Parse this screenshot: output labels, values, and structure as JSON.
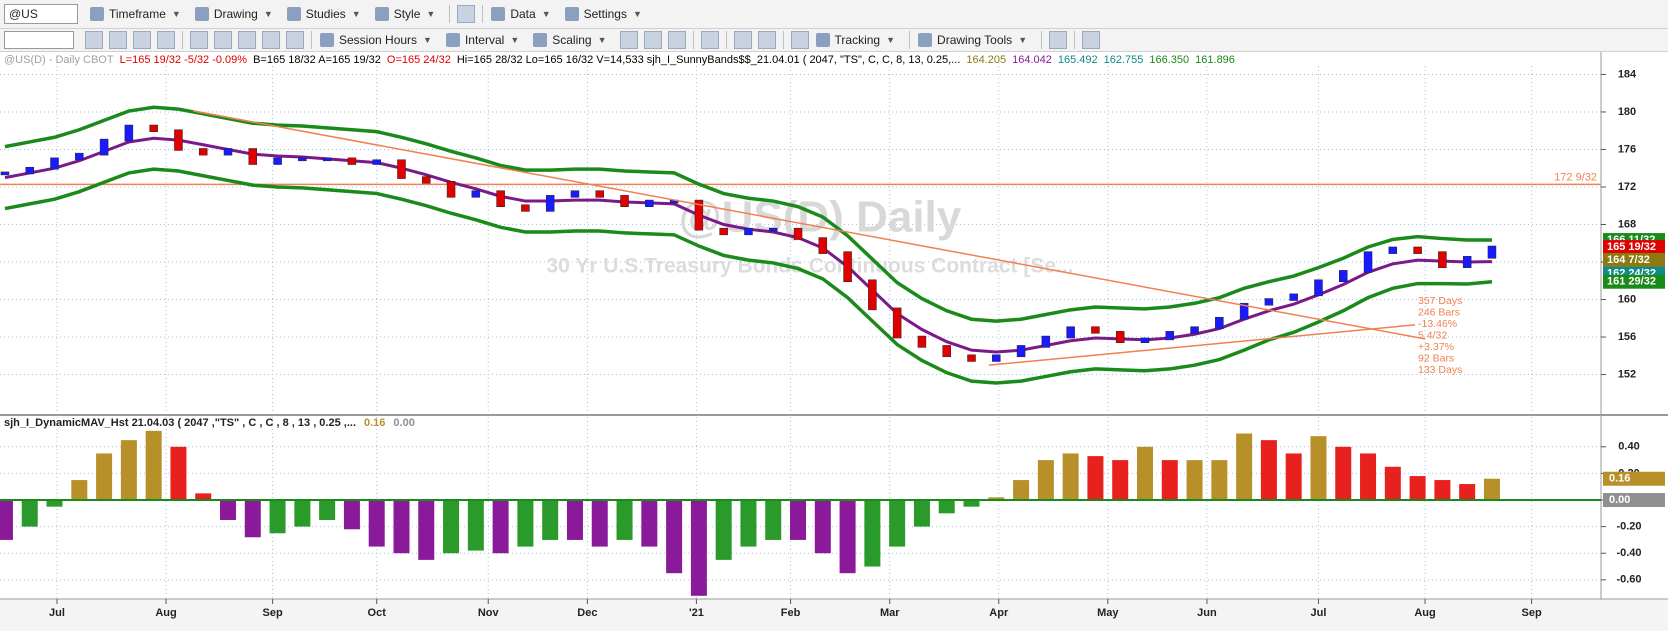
{
  "toolbar": {
    "symbol": "@US",
    "row1": [
      "Timeframe",
      "Drawing",
      "Studies",
      "Style",
      "Data",
      "Settings"
    ],
    "row2": [
      "Session Hours",
      "Interval",
      "Scaling",
      "Tracking",
      "Drawing Tools"
    ]
  },
  "chart_data": [
    {
      "type": "candlestick",
      "watermark_title": "@US(D) Daily",
      "watermark_subtitle": "30 Yr U.S.Treasury Bonds Continuous Contract [Se...",
      "header": [
        {
          "text": "@US(D) - Daily  CBOT",
          "color": "#a0a0a0"
        },
        {
          "text": "L=165 19/32  -5/32  -0.09%",
          "color": "#e00000"
        },
        {
          "text": "B=165 18/32  A=165 19/32",
          "color": "#000000"
        },
        {
          "text": "O=165 24/32",
          "color": "#e00000"
        },
        {
          "text": "Hi=165 28/32  Lo=165 16/32  V=14,533  sjh_I_SunnyBands$$_21.04.01 ( 2047, \"TS\", C, C,   8,  13,  0.25,...",
          "color": "#000000"
        },
        {
          "text": "164.205",
          "color": "#8a7a10"
        },
        {
          "text": "164.042",
          "color": "#8a1a9a"
        },
        {
          "text": "165.492",
          "color": "#108a8a"
        },
        {
          "text": "162.755",
          "color": "#108a8a"
        },
        {
          "text": "166.350",
          "color": "#1a8a1a"
        },
        {
          "text": "161.896",
          "color": "#1a8a1a"
        }
      ],
      "xlim": [
        -0.2,
        64.4
      ],
      "xticks": [
        {
          "value": 2.1,
          "label": "Jul"
        },
        {
          "value": 6.5,
          "label": "Aug"
        },
        {
          "value": 10.8,
          "label": "Sep"
        },
        {
          "value": 15.0,
          "label": "Oct"
        },
        {
          "value": 19.5,
          "label": "Nov"
        },
        {
          "value": 23.5,
          "label": "Dec"
        },
        {
          "value": 27.9,
          "label": "'21"
        },
        {
          "value": 31.7,
          "label": "Feb"
        },
        {
          "value": 35.7,
          "label": "Mar"
        },
        {
          "value": 40.1,
          "label": "Apr"
        },
        {
          "value": 44.5,
          "label": "May"
        },
        {
          "value": 48.5,
          "label": "Jun"
        },
        {
          "value": 53.0,
          "label": "Jul"
        },
        {
          "value": 57.3,
          "label": "Aug"
        },
        {
          "value": 61.6,
          "label": "Sep"
        }
      ],
      "ylim": [
        147.9,
        184.9
      ],
      "yticks": [
        152,
        156,
        160,
        164,
        168,
        172,
        176,
        180,
        184
      ],
      "grid": true,
      "up_color": "#1a1aff",
      "down_color": "#e00000",
      "series": [
        {
          "style": "candles",
          "color": "#1a1aff",
          "values": [
            173.5,
            174,
            175,
            175.5,
            177,
            178.5,
            178,
            176,
            175.5,
            176,
            174.5,
            175,
            175,
            175,
            174.5,
            174.8,
            173,
            172.5,
            171,
            171.5,
            170,
            169.5,
            171,
            171.5,
            171,
            170,
            170.5,
            170.5,
            167.5,
            167,
            167.5,
            167.5,
            166.5,
            165,
            162,
            159,
            156,
            155,
            154,
            153.5,
            154,
            155,
            156,
            157,
            156.5,
            155.5,
            155.8,
            156.5,
            157,
            158,
            159.5,
            160,
            160.5,
            162,
            163,
            165,
            165.5,
            165,
            163.5,
            164.5,
            165.6
          ]
        },
        {
          "style": "line",
          "color": "#7a1a8a",
          "width": 3,
          "values": [
            173,
            173.5,
            174,
            174.8,
            175.8,
            176.8,
            177.2,
            177,
            176.5,
            176,
            175.5,
            175.3,
            175.2,
            175,
            174.8,
            174.6,
            174,
            173.3,
            172.5,
            171.8,
            171,
            170.5,
            170.5,
            170.6,
            170.6,
            170.4,
            170.3,
            170.2,
            169,
            168,
            167.5,
            167.2,
            166.6,
            165.5,
            163.5,
            161,
            158.5,
            156.8,
            155.5,
            154.6,
            154.4,
            154.6,
            155.1,
            155.6,
            155.9,
            155.8,
            155.7,
            155.9,
            156.3,
            156.9,
            157.9,
            158.8,
            159.5,
            160.5,
            161.6,
            162.9,
            163.8,
            164.2,
            164.1,
            164.0,
            164.04
          ]
        },
        {
          "style": "line",
          "color": "#1a8a1a",
          "width": 3.5,
          "values": [
            176.3,
            176.8,
            177.3,
            178.1,
            179.1,
            180.1,
            180.5,
            180.3,
            179.8,
            179.3,
            178.8,
            178.6,
            178.5,
            178.3,
            178.1,
            177.9,
            177.3,
            176.6,
            175.8,
            175.1,
            174.3,
            173.8,
            173.8,
            173.9,
            173.9,
            173.7,
            173.6,
            173.5,
            172.3,
            171.3,
            170.8,
            170.5,
            169.9,
            168.8,
            166.8,
            164.3,
            161.8,
            160.1,
            158.8,
            157.9,
            157.7,
            157.9,
            158.4,
            158.9,
            159.2,
            159.1,
            159.0,
            159.2,
            159.6,
            160.2,
            161.2,
            161.9,
            162.5,
            163.4,
            164.4,
            165.6,
            166.4,
            166.7,
            166.5,
            166.35,
            166.35
          ]
        },
        {
          "style": "line",
          "color": "#1a8a1a",
          "width": 3.5,
          "values": [
            169.7,
            170.2,
            170.7,
            171.5,
            172.5,
            173.5,
            173.9,
            173.7,
            173.2,
            172.7,
            172.2,
            172.0,
            171.9,
            171.7,
            171.5,
            171.3,
            170.7,
            170.0,
            169.2,
            168.5,
            167.7,
            167.2,
            167.2,
            167.3,
            167.3,
            167.1,
            167.0,
            166.9,
            165.7,
            164.7,
            164.2,
            163.9,
            163.3,
            162.2,
            160.2,
            157.7,
            155.2,
            153.5,
            152.2,
            151.3,
            151.1,
            151.3,
            151.8,
            152.3,
            152.6,
            152.5,
            152.4,
            152.6,
            153.0,
            153.6,
            154.6,
            155.7,
            156.5,
            157.6,
            158.8,
            160.2,
            161.2,
            161.7,
            161.7,
            161.65,
            161.9
          ]
        }
      ],
      "hline": {
        "value": 172.28,
        "label": "172 9/32",
        "color": "#f08050"
      },
      "trendlines": [
        {
          "x": [
            7.6,
            57.3
          ],
          "y": [
            180.1,
            155.8
          ]
        },
        {
          "x": [
            39.7,
            56.9
          ],
          "y": [
            153,
            157.3
          ]
        }
      ],
      "annotations": [
        "357 Days",
        "246 Bars",
        "-13.46%",
        "5 4/32",
        "+3.37%",
        "92 Bars",
        "133 Days"
      ],
      "price_tags": [
        {
          "value": 166.34,
          "label": "166 11/32",
          "color": "#1a8a1a"
        },
        {
          "value": 165.59,
          "label": "165 19/32",
          "color": "#e00000"
        },
        {
          "value": 164.22,
          "label": "164 7/32",
          "color": "#8a7a10"
        },
        {
          "value": 162.75,
          "label": "162 24/32",
          "color": "#108a8a"
        },
        {
          "value": 161.9,
          "label": "161 29/32",
          "color": "#1a8a1a"
        }
      ]
    },
    {
      "type": "bar",
      "title": "sjh_I_DynamicMAV_Hst 21.04.03 ( 2047 ,\"TS\" , C , C , 8 , 13 , 0.25 ,...",
      "legend_values": [
        {
          "value": 0.16,
          "label": "0.16",
          "color": "#b8902a"
        },
        {
          "value": 0,
          "label": "0.00",
          "color": "#909090"
        }
      ],
      "xlim": [
        -0.2,
        64.4
      ],
      "ylim": [
        -0.744,
        0.624
      ],
      "yticks": [
        {
          "value": 0.4,
          "label": "0.40"
        },
        {
          "value": 0.2,
          "label": "0.20"
        },
        {
          "value": 0,
          "label": "0.00"
        },
        {
          "value": -0.2,
          "label": "-0.20"
        },
        {
          "value": -0.4,
          "label": "-0.40"
        },
        {
          "value": -0.6,
          "label": "-0.60"
        }
      ],
      "grid": true,
      "colors": {
        "pos_up": "#b8902a",
        "pos_down": "#e8201e",
        "neg_down": "#8a1a9a",
        "neg_up": "#2a9a2a"
      },
      "values": [
        -0.3,
        -0.2,
        -0.05,
        0.15,
        0.35,
        0.45,
        0.52,
        0.4,
        0.05,
        -0.15,
        -0.28,
        -0.25,
        -0.2,
        -0.15,
        -0.22,
        -0.35,
        -0.4,
        -0.45,
        -0.4,
        -0.38,
        -0.4,
        -0.35,
        -0.3,
        -0.3,
        -0.35,
        -0.3,
        -0.35,
        -0.55,
        -0.72,
        -0.45,
        -0.35,
        -0.3,
        -0.3,
        -0.4,
        -0.55,
        -0.5,
        -0.35,
        -0.2,
        -0.1,
        -0.05,
        0.02,
        0.15,
        0.3,
        0.35,
        0.33,
        0.3,
        0.4,
        0.3,
        0.3,
        0.3,
        0.5,
        0.45,
        0.35,
        0.48,
        0.4,
        0.35,
        0.25,
        0.18,
        0.15,
        0.12,
        0.16
      ]
    }
  ]
}
